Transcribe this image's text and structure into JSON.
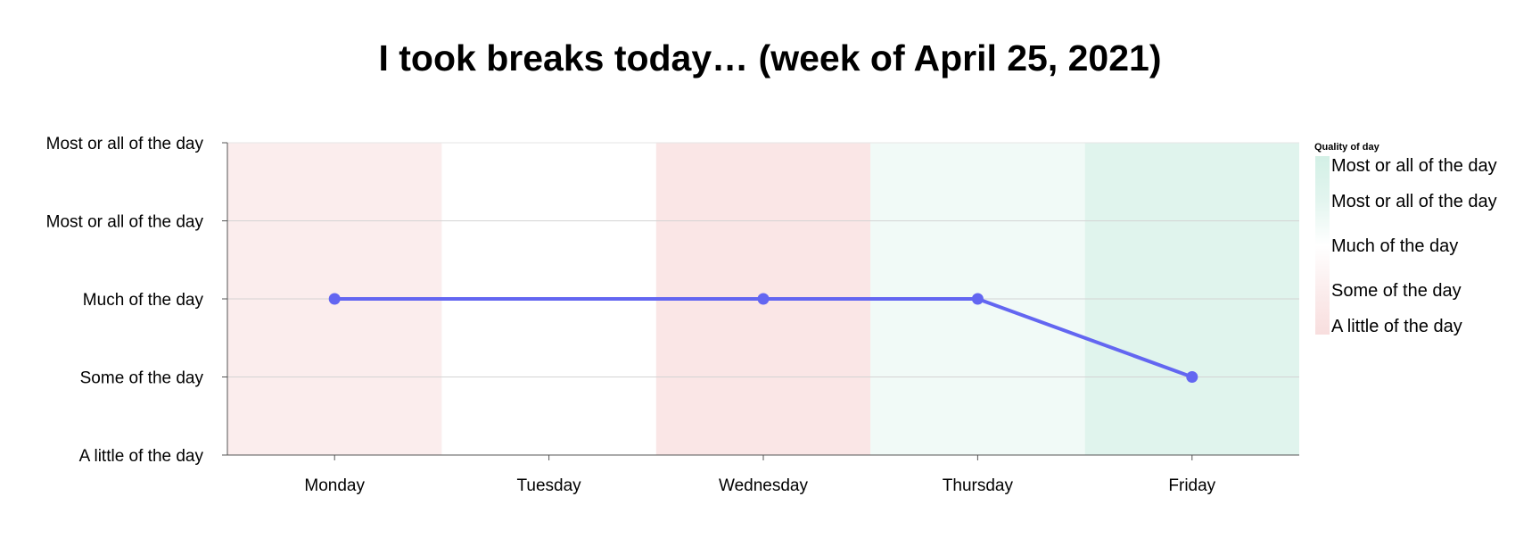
{
  "chart_data": {
    "type": "line",
    "title": "I took breaks today… (week of April 25, 2021)",
    "xlabel": "",
    "ylabel": "",
    "categories": [
      "Monday",
      "Tuesday",
      "Wednesday",
      "Thursday",
      "Friday"
    ],
    "y_tick_labels": [
      "A little of the day",
      "Some of the day",
      "Much of the day",
      "Most or all of the day",
      "Most or all of the day"
    ],
    "ylim": [
      1,
      5
    ],
    "grid": true,
    "series": [
      {
        "values": [
          3,
          null,
          3,
          3,
          2
        ],
        "color": "#6366f1"
      }
    ],
    "background_bands": {
      "legend_title": "Quality of day",
      "values": [
        2.0,
        3.0,
        1.5,
        3.5,
        4.2
      ]
    },
    "colorscale": [
      {
        "level": 1,
        "color": "#f8dede"
      },
      {
        "level": 2,
        "color": "#fbeded"
      },
      {
        "level": 3,
        "color": "#ffffff"
      },
      {
        "level": 4,
        "color": "#e3f5ef"
      },
      {
        "level": 5,
        "color": "#d3f0e6"
      }
    ],
    "legend": {
      "title": "Quality of day",
      "position": "right",
      "labels": [
        "Most or all of the day",
        "Most or all of the day",
        "Much of the day",
        "Some of the day",
        "A little of the day"
      ]
    }
  }
}
